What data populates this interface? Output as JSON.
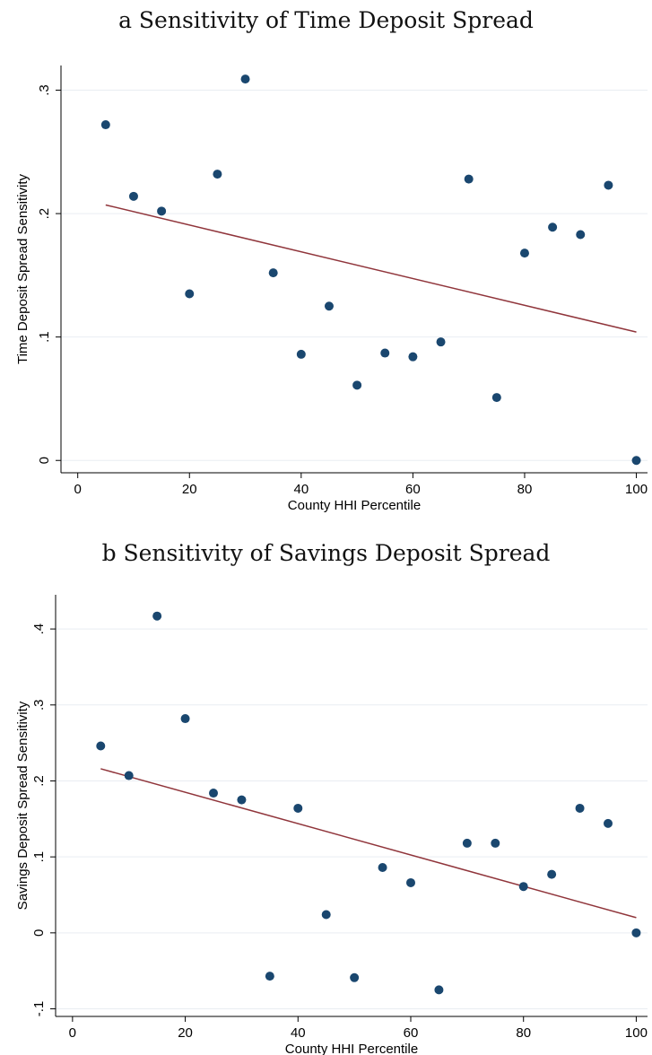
{
  "chart_data": [
    {
      "type": "scatter",
      "title": "a Sensitivity of Time Deposit Spread",
      "xlabel": "County HHI Percentile",
      "ylabel": "Time Deposit Spread Sensitivity",
      "xlim": [
        -3,
        102
      ],
      "ylim": [
        -0.01,
        0.32
      ],
      "xticks": [
        0,
        20,
        40,
        60,
        80,
        100
      ],
      "xtick_labels": [
        "0",
        "20",
        "40",
        "60",
        "80",
        "100"
      ],
      "yticks": [
        0,
        0.1,
        0.2,
        0.3
      ],
      "ytick_labels": [
        "0",
        ".1",
        ".2",
        ".3"
      ],
      "grid": true,
      "points": {
        "x": [
          5,
          10,
          15,
          20,
          25,
          30,
          35,
          40,
          45,
          50,
          55,
          60,
          65,
          70,
          75,
          80,
          85,
          90,
          95,
          100
        ],
        "y": [
          0.272,
          0.214,
          0.202,
          0.135,
          0.232,
          0.309,
          0.152,
          0.086,
          0.125,
          0.061,
          0.087,
          0.084,
          0.096,
          0.228,
          0.051,
          0.168,
          0.189,
          0.183,
          0.223,
          0.0
        ]
      },
      "fit_line": {
        "x": [
          5,
          100
        ],
        "y": [
          0.207,
          0.104
        ]
      },
      "colors": {
        "points": "#1a476f",
        "fit": "#90353b"
      }
    },
    {
      "type": "scatter",
      "title": "b Sensitivity of Savings Deposit Spread",
      "xlabel": "County HHI Percentile",
      "ylabel": "Savings Deposit Spread Sensitivity",
      "xlim": [
        -3,
        102
      ],
      "ylim": [
        -0.11,
        0.445
      ],
      "xticks": [
        0,
        20,
        40,
        60,
        80,
        100
      ],
      "xtick_labels": [
        "0",
        "20",
        "40",
        "60",
        "80",
        "100"
      ],
      "yticks": [
        -0.1,
        0,
        0.1,
        0.2,
        0.3,
        0.4
      ],
      "ytick_labels": [
        "-.1",
        "0",
        ".1",
        ".2",
        ".3",
        ".4"
      ],
      "grid": true,
      "points": {
        "x": [
          5,
          10,
          15,
          20,
          25,
          30,
          35,
          40,
          45,
          50,
          55,
          60,
          65,
          70,
          75,
          80,
          85,
          90,
          95,
          100
        ],
        "y": [
          0.246,
          0.207,
          0.417,
          0.282,
          0.184,
          0.175,
          -0.057,
          0.164,
          0.024,
          -0.059,
          0.086,
          0.066,
          -0.075,
          0.118,
          0.118,
          0.061,
          0.077,
          0.164,
          0.144,
          0.0
        ]
      },
      "fit_line": {
        "x": [
          5,
          100
        ],
        "y": [
          0.216,
          0.02
        ]
      },
      "colors": {
        "points": "#1a476f",
        "fit": "#90353b"
      }
    }
  ]
}
